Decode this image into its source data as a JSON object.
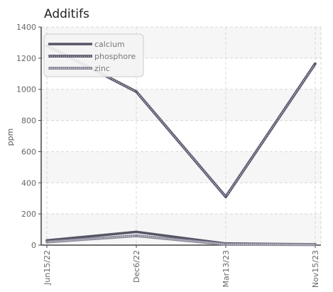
{
  "chart_data": {
    "type": "line",
    "title": "Additifs",
    "xlabel": "",
    "ylabel": "ppm",
    "categories": [
      "Jun15/22",
      "Dec6/22",
      "Mar13/23",
      "Nov15/23"
    ],
    "ylim": [
      0,
      1400
    ],
    "yticks": [
      0,
      200,
      400,
      600,
      800,
      1000,
      1200,
      1400
    ],
    "grid": true,
    "legend_position": "top-left",
    "series": [
      {
        "name": "calcium",
        "values": [
          30,
          85,
          10,
          5
        ],
        "color": "#555566",
        "style": "solid"
      },
      {
        "name": "phosphore",
        "values": [
          1280,
          985,
          310,
          1165
        ],
        "color": "#5a5a6e",
        "style": "dotted"
      },
      {
        "name": "zinc",
        "values": [
          20,
          60,
          5,
          3
        ],
        "color": "#8a8a9a",
        "style": "dotted"
      }
    ]
  }
}
